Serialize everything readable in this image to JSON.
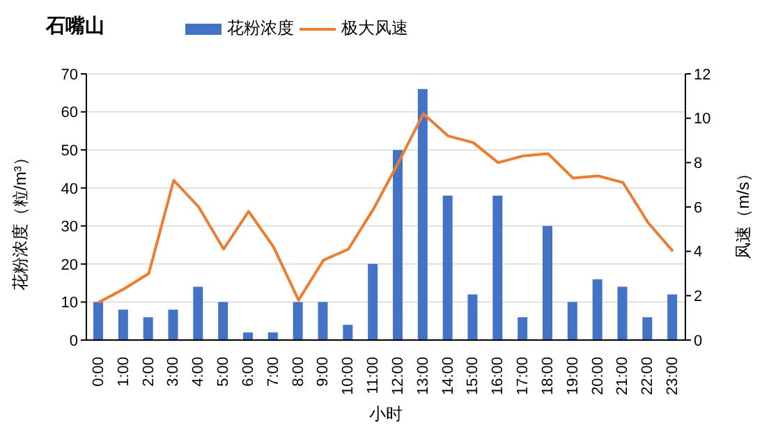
{
  "chart_data": {
    "type": "bar",
    "title": "石嘴山",
    "xlabel": "小时",
    "ylabel": "花粉浓度（粒/m³）",
    "y2label": "风速（m/s）",
    "categories": [
      "0:00",
      "1:00",
      "2:00",
      "3:00",
      "4:00",
      "5:00",
      "6:00",
      "7:00",
      "8:00",
      "9:00",
      "10:00",
      "11:00",
      "12:00",
      "13:00",
      "14:00",
      "15:00",
      "16:00",
      "17:00",
      "18:00",
      "19:00",
      "20:00",
      "21:00",
      "22:00",
      "23:00"
    ],
    "series": [
      {
        "name": "花粉浓度",
        "color": "#4472c4",
        "values": [
          10,
          8,
          6,
          8,
          14,
          10,
          2,
          2,
          10,
          10,
          4,
          20,
          50,
          66,
          38,
          12,
          38,
          6,
          30,
          10,
          16,
          14,
          6,
          12
        ]
      },
      {
        "name": "极大风速",
        "type": "line",
        "axis": "y2",
        "color": "#ed7d31",
        "values": [
          1.7,
          2.3,
          3.0,
          7.2,
          6.0,
          4.1,
          5.8,
          4.2,
          1.8,
          3.6,
          4.1,
          5.9,
          8.0,
          10.2,
          9.2,
          8.9,
          8.0,
          8.3,
          8.4,
          7.3,
          7.4,
          7.1,
          5.3,
          4.0
        ]
      }
    ],
    "ylim": [
      0,
      70
    ],
    "yticks": [
      0,
      10,
      20,
      30,
      40,
      50,
      60,
      70
    ],
    "y2lim": [
      0,
      12
    ],
    "y2ticks": [
      0,
      2,
      4,
      6,
      8,
      10,
      12
    ],
    "grid": "y",
    "legend": "top",
    "marker": "none",
    "line_style": "solid"
  }
}
